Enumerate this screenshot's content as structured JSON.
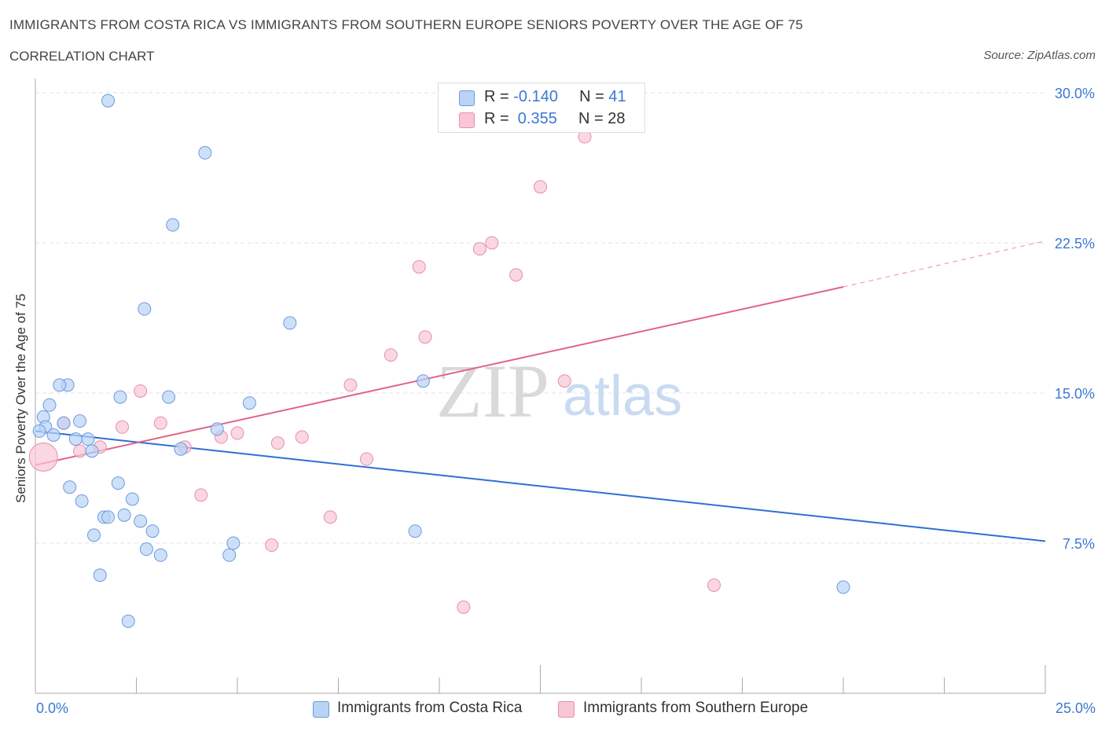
{
  "header": {
    "title": "IMMIGRANTS FROM COSTA RICA VS IMMIGRANTS FROM SOUTHERN EUROPE SENIORS POVERTY OVER THE AGE OF 75",
    "subtitle": "CORRELATION CHART",
    "source": "Source: ZipAtlas.com"
  },
  "watermark": {
    "zip": "ZIP",
    "atlas": "atlas"
  },
  "legend_top": {
    "rows": [
      {
        "r_label": "R = ",
        "r_value": "-0.140",
        "n_label": "N = ",
        "n_value": "41",
        "color": "#b9d3f5",
        "border": "#6a9be0"
      },
      {
        "r_label": "R = ",
        "r_value": " 0.355",
        "n_label": "N = ",
        "n_value": "28",
        "color": "#f8c6d5",
        "border": "#e88fab"
      }
    ]
  },
  "chart_data": {
    "type": "scatter",
    "title": "IMMIGRANTS FROM COSTA RICA VS IMMIGRANTS FROM SOUTHERN EUROPE SENIORS POVERTY OVER THE AGE OF 75",
    "xlabel": "",
    "ylabel": "Seniors Poverty Over the Age of 75",
    "xlim": [
      0,
      25
    ],
    "ylim": [
      0,
      30
    ],
    "x_tick_labels": [
      "0.0%",
      "25.0%"
    ],
    "y_ticks": [
      7.5,
      15.0,
      22.5,
      30.0
    ],
    "y_tick_labels": [
      "7.5%",
      "15.0%",
      "22.5%",
      "30.0%"
    ],
    "grid": true,
    "legend_position": "bottom",
    "series": [
      {
        "name": "Immigrants from Costa Rica",
        "color": "#6a9be0",
        "fill": "#b9d3f5",
        "trend": {
          "x": [
            0,
            25
          ],
          "y": [
            13.1,
            7.6
          ]
        },
        "points": [
          [
            1.8,
            29.6
          ],
          [
            4.2,
            27.0
          ],
          [
            3.4,
            23.4
          ],
          [
            2.7,
            19.2
          ],
          [
            6.3,
            18.5
          ],
          [
            0.8,
            15.4
          ],
          [
            0.6,
            15.4
          ],
          [
            2.1,
            14.8
          ],
          [
            3.3,
            14.8
          ],
          [
            5.3,
            14.5
          ],
          [
            0.35,
            14.4
          ],
          [
            0.2,
            13.8
          ],
          [
            1.1,
            13.6
          ],
          [
            0.7,
            13.5
          ],
          [
            0.25,
            13.3
          ],
          [
            0.1,
            13.1
          ],
          [
            4.5,
            13.2
          ],
          [
            0.45,
            12.9
          ],
          [
            1.3,
            12.7
          ],
          [
            1.0,
            12.7
          ],
          [
            1.4,
            12.1
          ],
          [
            3.6,
            12.2
          ],
          [
            9.6,
            15.6
          ],
          [
            0.85,
            10.3
          ],
          [
            2.05,
            10.5
          ],
          [
            1.15,
            9.6
          ],
          [
            2.4,
            9.7
          ],
          [
            2.2,
            8.9
          ],
          [
            1.7,
            8.8
          ],
          [
            1.8,
            8.8
          ],
          [
            2.6,
            8.6
          ],
          [
            2.9,
            8.1
          ],
          [
            9.4,
            8.1
          ],
          [
            1.45,
            7.9
          ],
          [
            4.9,
            7.5
          ],
          [
            2.75,
            7.2
          ],
          [
            3.1,
            6.9
          ],
          [
            4.8,
            6.9
          ],
          [
            1.6,
            5.9
          ],
          [
            20.0,
            5.3
          ],
          [
            2.3,
            3.6
          ]
        ]
      },
      {
        "name": "Immigrants from Southern Europe",
        "color": "#e88fab",
        "fill": "#f8c6d5",
        "trend": {
          "x": [
            0,
            20
          ],
          "y": [
            11.4,
            20.3
          ],
          "dashed_extension": {
            "x": [
              20,
              25
            ],
            "y": [
              20.3,
              22.6
            ]
          }
        },
        "points": [
          [
            13.6,
            27.8
          ],
          [
            12.5,
            25.3
          ],
          [
            11.0,
            22.2
          ],
          [
            11.3,
            22.5
          ],
          [
            9.5,
            21.3
          ],
          [
            11.9,
            20.9
          ],
          [
            9.65,
            17.8
          ],
          [
            8.8,
            16.9
          ],
          [
            7.8,
            15.4
          ],
          [
            13.1,
            15.6
          ],
          [
            2.6,
            15.1
          ],
          [
            0.7,
            13.5
          ],
          [
            2.15,
            13.3
          ],
          [
            3.1,
            13.5
          ],
          [
            5.0,
            13.0
          ],
          [
            4.6,
            12.8
          ],
          [
            6.0,
            12.5
          ],
          [
            6.6,
            12.8
          ],
          [
            1.6,
            12.3
          ],
          [
            3.7,
            12.3
          ],
          [
            1.1,
            12.1
          ],
          [
            8.2,
            11.7
          ],
          [
            0.2,
            11.8
          ],
          [
            4.1,
            9.9
          ],
          [
            7.3,
            8.8
          ],
          [
            5.85,
            7.4
          ],
          [
            16.8,
            5.4
          ],
          [
            10.6,
            4.3
          ]
        ]
      }
    ]
  },
  "bottom_legend": {
    "items": [
      {
        "label": "Immigrants from Costa Rica",
        "color": "#b9d3f5",
        "border": "#6a9be0"
      },
      {
        "label": "Immigrants from Southern Europe",
        "color": "#f8c6d5",
        "border": "#e88fab"
      }
    ]
  }
}
